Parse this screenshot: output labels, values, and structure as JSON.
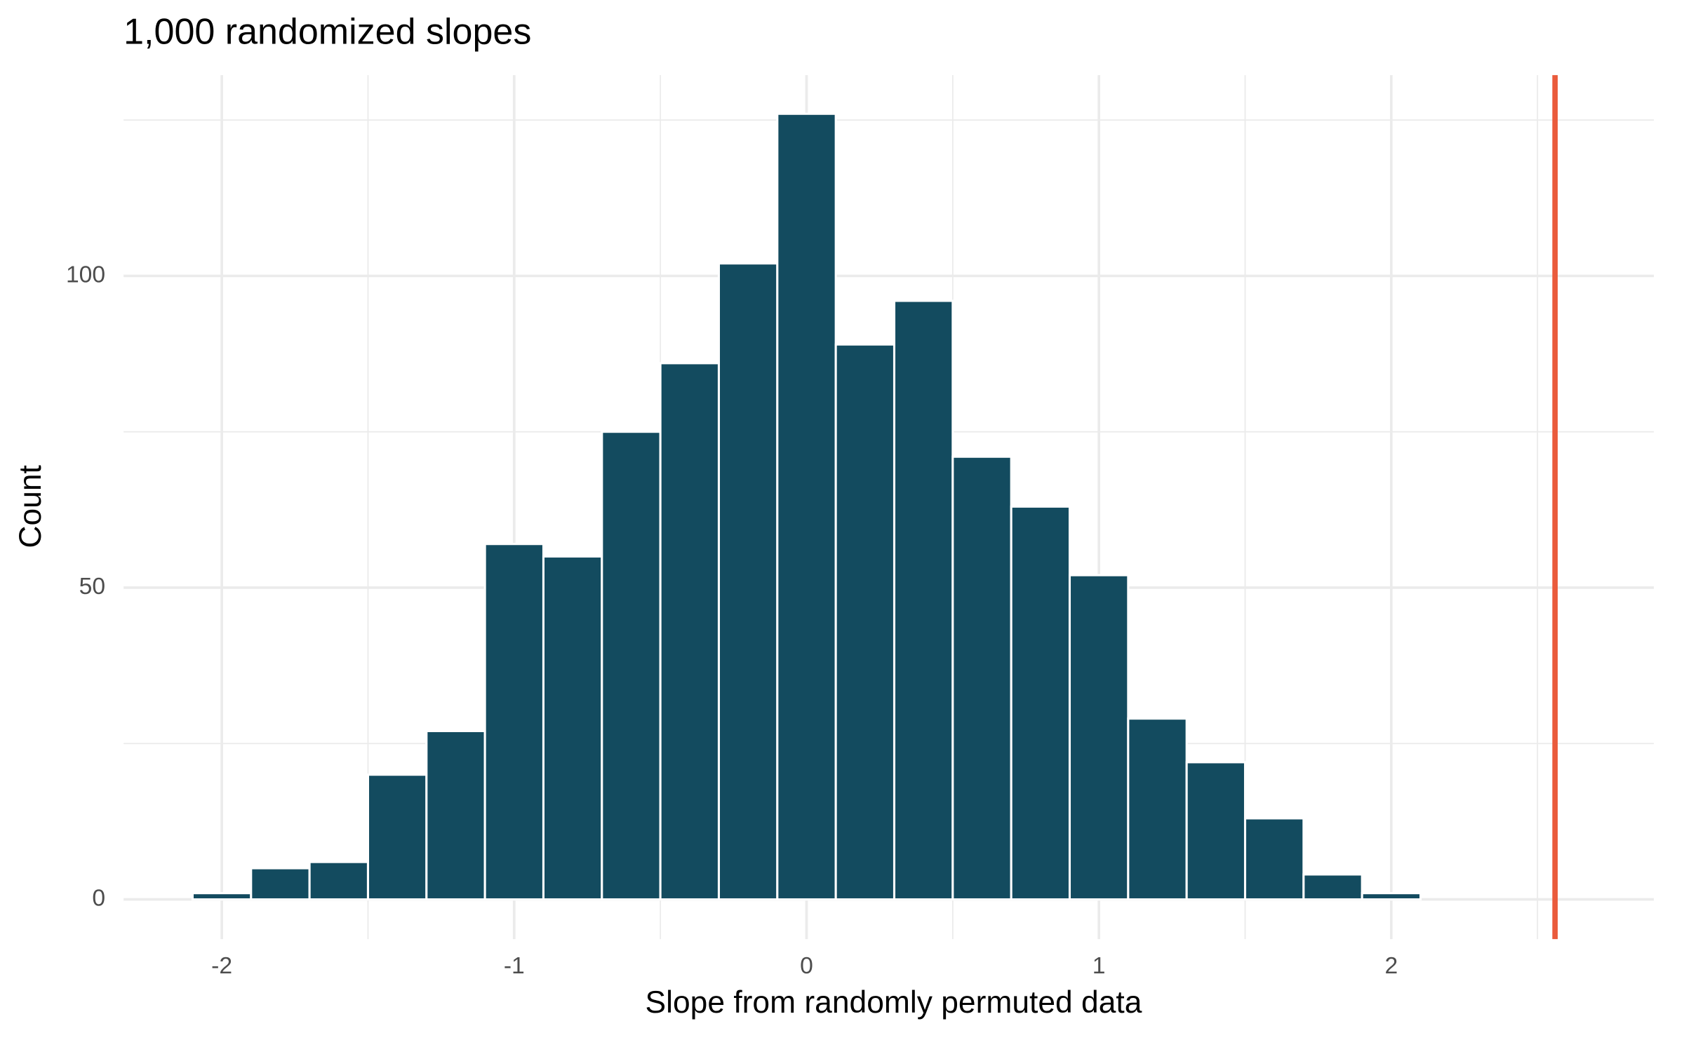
{
  "chart_data": {
    "type": "histogram",
    "title": "1,000 randomized slopes",
    "x_label": "Slope from randomly permuted data",
    "y_label": "Count",
    "bins": [
      -2.1,
      -1.9,
      -1.7,
      -1.5,
      -1.3,
      -1.1,
      -0.9,
      -0.7,
      -0.5,
      -0.3,
      -0.1,
      0.1,
      0.3,
      0.5,
      0.7,
      0.9,
      1.1,
      1.3,
      1.5,
      1.7,
      1.9,
      2.1
    ],
    "counts": [
      1,
      5,
      6,
      20,
      27,
      57,
      55,
      75,
      86,
      102,
      126,
      89,
      96,
      71,
      63,
      52,
      29,
      22,
      13,
      4,
      1
    ],
    "color": "#134b5f",
    "edge_color": "#ffffff",
    "vline": {
      "value": 2.56,
      "color": "#ea5b3c"
    },
    "xlim": [
      -2.336,
      2.898
    ],
    "ylim": [
      -6.37,
      132.2
    ],
    "xticks": [
      -2,
      -1,
      0,
      1,
      2
    ],
    "yticks": [
      0,
      50,
      100
    ],
    "grid": true,
    "minor_grid": true
  }
}
